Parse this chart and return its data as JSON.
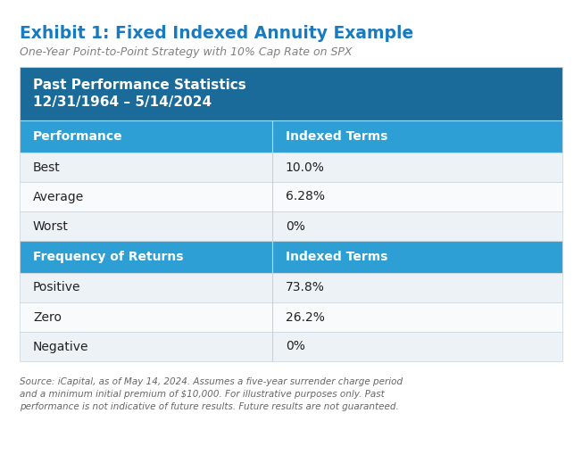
{
  "title": "Exhibit 1: Fixed Indexed Annuity Example",
  "subtitle": "One-Year Point-to-Point Strategy with 10% Cap Rate on SPX",
  "title_color": "#1a7abf",
  "subtitle_color": "#808080",
  "header_bg": "#1a6b9a",
  "subheader_bg": "#2e9fd4",
  "row_bg_alt": "#edf2f7",
  "row_bg_white": "#f8fafc",
  "border_color": "#c8d4dc",
  "header_text_color": "#ffffff",
  "row_text_color": "#222222",
  "col1_header1": "Performance",
  "col1_header2": "Frequency of Returns",
  "col2_header": "Indexed Terms",
  "section1_header_line1": "Past Performance Statistics",
  "section1_header_line2": "12/31/1964 – 5/14/2024",
  "perf_rows": [
    [
      "Best",
      "10.0%"
    ],
    [
      "Average",
      "6.28%"
    ],
    [
      "Worst",
      "0%"
    ]
  ],
  "freq_rows": [
    [
      "Positive",
      "73.8%"
    ],
    [
      "Zero",
      "26.2%"
    ],
    [
      "Negative",
      "0%"
    ]
  ],
  "footnote": "Source: iCapital, as of May 14, 2024. Assumes a five-year surrender charge period\nand a minimum initial premium of $10,000. For illustrative purposes only. Past\nperformance is not indicative of future results. Future results are not guaranteed.",
  "footnote_color": "#666666",
  "background_color": "#ffffff",
  "fig_width": 6.52,
  "fig_height": 5.28
}
